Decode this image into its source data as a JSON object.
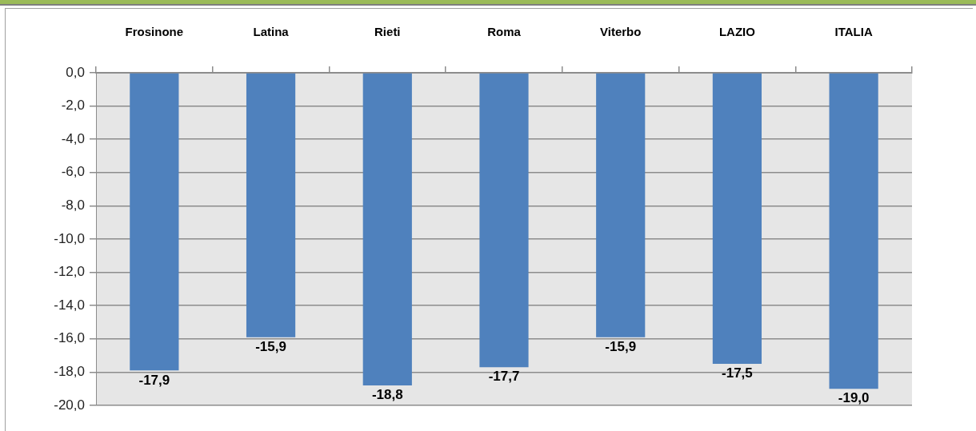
{
  "chart_data": {
    "type": "bar",
    "categories": [
      "Frosinone",
      "Latina",
      "Rieti",
      "Roma",
      "Viterbo",
      "LAZIO",
      "ITALIA"
    ],
    "values": [
      -17.9,
      -15.9,
      -18.8,
      -17.7,
      -15.9,
      -17.5,
      -19.0
    ],
    "value_labels": [
      "-17,9",
      "-15,9",
      "-18,8",
      "-17,7",
      "-15,9",
      "-17,5",
      "-19,0"
    ],
    "color": "#4f81bd",
    "ylim": [
      -20,
      0
    ],
    "yticks": [
      {
        "value": 0,
        "label": "0,0"
      },
      {
        "value": -2,
        "label": "-2,0"
      },
      {
        "value": -4,
        "label": "-4,0"
      },
      {
        "value": -6,
        "label": "-6,0"
      },
      {
        "value": -8,
        "label": "-8,0"
      },
      {
        "value": -10,
        "label": "-10,0"
      },
      {
        "value": -12,
        "label": "-12,0"
      },
      {
        "value": -14,
        "label": "-14,0"
      },
      {
        "value": -16,
        "label": "-16,0"
      },
      {
        "value": -18,
        "label": "-18,0"
      },
      {
        "value": -20,
        "label": "-20,0"
      }
    ],
    "grid": "y"
  }
}
